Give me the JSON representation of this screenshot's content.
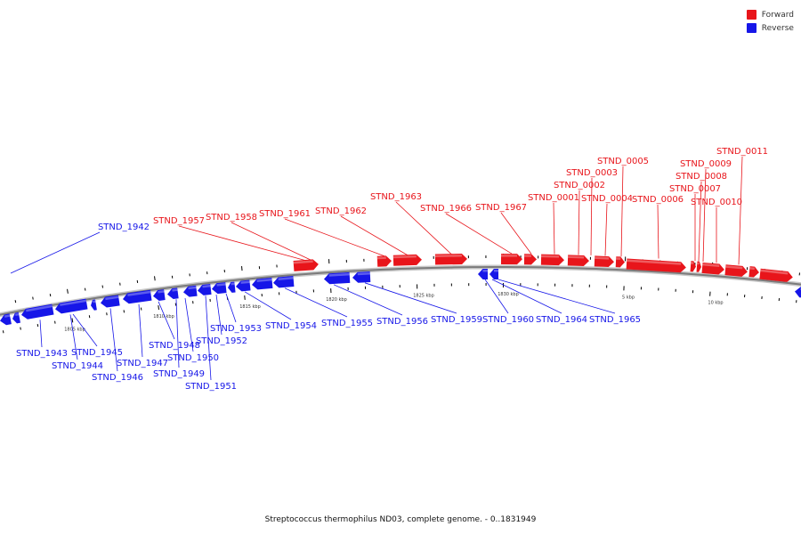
{
  "title": "Streptococcus thermophilus ND03, complete genome. - 0..1831949",
  "colors": {
    "forward": "#e8151b",
    "reverse": "#1616e8",
    "backbone": "#7b7b7b"
  },
  "legend": [
    {
      "label": "Forward",
      "strand": "forward"
    },
    {
      "label": "Reverse",
      "strand": "reverse"
    }
  ],
  "scale_labels": [
    "1805 kbp",
    "1810 kbp",
    "1815 kbp",
    "1820 kbp",
    "1825 kbp",
    "1830 kbp",
    "5 kbp",
    "10 kbp"
  ],
  "forward_labels": [
    "STND_1957",
    "STND_1958",
    "STND_1961",
    "STND_1962",
    "STND_1963",
    "STND_1966",
    "STND_1967",
    "STND_0001",
    "STND_0002",
    "STND_0003",
    "STND_0004",
    "STND_0005",
    "STND_0006",
    "STND_0007",
    "STND_0008",
    "STND_0009",
    "STND_0010",
    "STND_0011"
  ],
  "reverse_labels": [
    "STND_1942",
    "STND_1943",
    "STND_1944",
    "STND_1945",
    "STND_1946",
    "STND_1947",
    "STND_1948",
    "STND_1949",
    "STND_1950",
    "STND_1951",
    "STND_1952",
    "STND_1953",
    "STND_1954",
    "STND_1955",
    "STND_1956",
    "STND_1959",
    "STND_1960",
    "STND_1964",
    "STND_1965"
  ]
}
